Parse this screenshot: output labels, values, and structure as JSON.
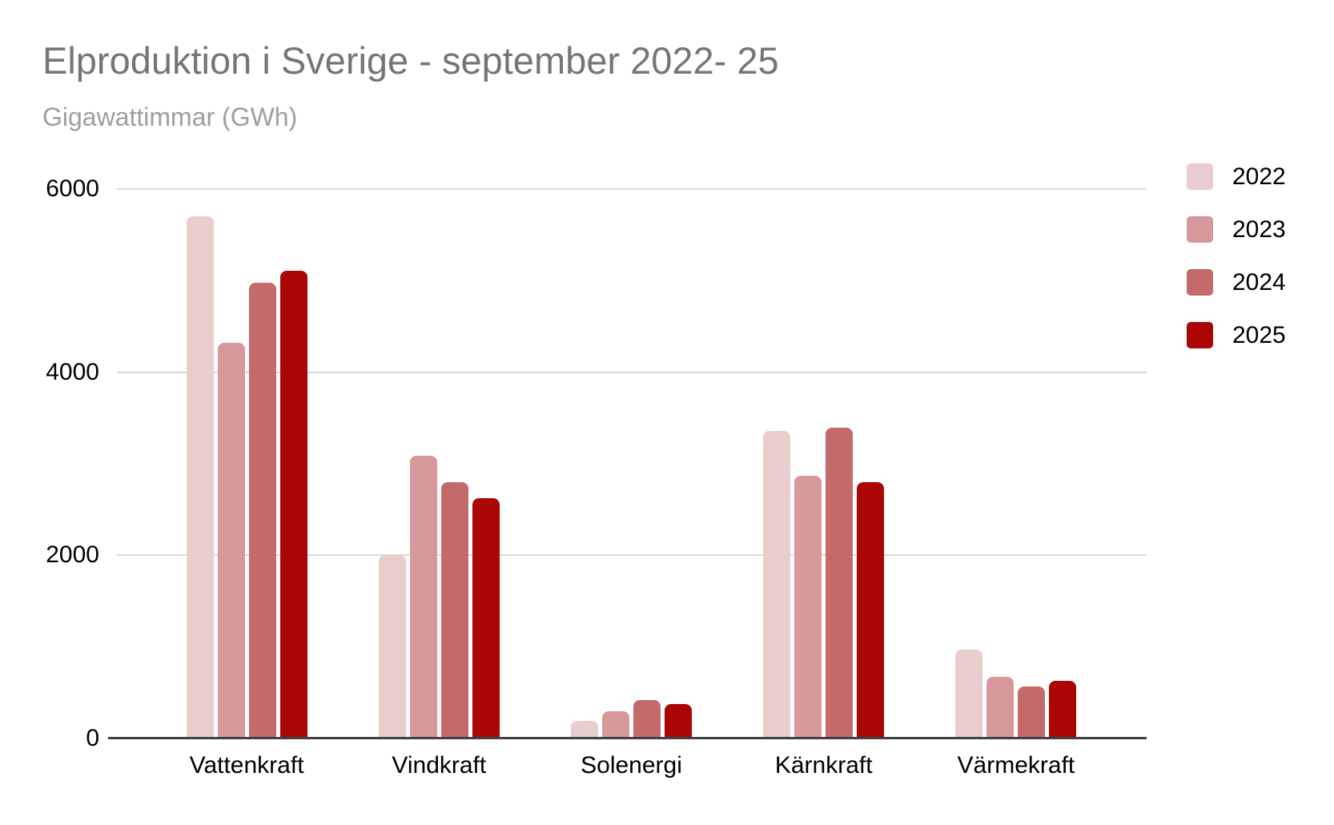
{
  "header": {
    "title": "Elproduktion i Sverige - september 2022- 25",
    "subtitle": "Gigawattimmar (GWh)"
  },
  "chart_data": {
    "type": "bar",
    "title": "Elproduktion i Sverige - september 2022- 25",
    "subtitle": "Gigawattimmar (GWh)",
    "ylabel": "Gigawattimmar (GWh)",
    "categories": [
      "Vattenkraft",
      "Vindkraft",
      "Solenergi",
      "Kärnkraft",
      "Värmekraft"
    ],
    "series": [
      {
        "name": "2022",
        "color": "#e9cdce",
        "values": [
          5700,
          2000,
          190,
          3360,
          970
        ]
      },
      {
        "name": "2023",
        "color": "#d6989a",
        "values": [
          4320,
          3090,
          300,
          2870,
          670
        ]
      },
      {
        "name": "2024",
        "color": "#c46a6b",
        "values": [
          4980,
          2800,
          420,
          3390,
          570
        ]
      },
      {
        "name": "2025",
        "color": "#ab0505",
        "values": [
          5110,
          2620,
          380,
          2800,
          630
        ]
      }
    ],
    "ylim": [
      0,
      6000
    ],
    "yticks": [
      0,
      2000,
      4000,
      6000
    ],
    "grid": true,
    "legend_position": "right"
  },
  "colors": {
    "background": "#ffffff",
    "title": "#757575",
    "subtitle": "#9e9e9e",
    "axis_text": "#000000",
    "gridline": "#d9d9d9",
    "baseline": "#424242"
  }
}
